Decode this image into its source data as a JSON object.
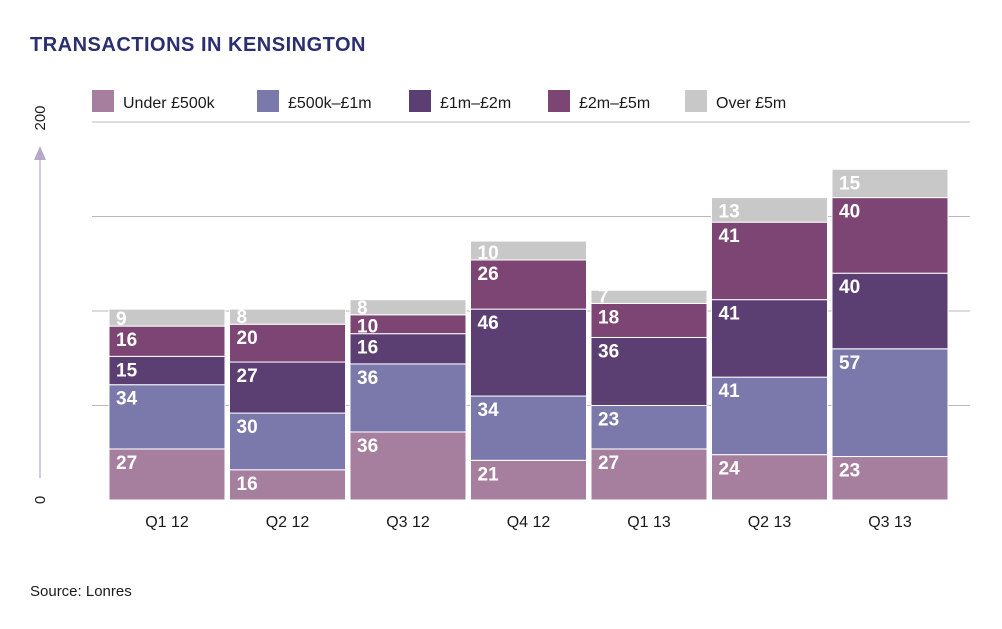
{
  "title": "TRANSACTIONS IN KENSINGTON",
  "source": "Source: Lonres",
  "chart_data": {
    "type": "bar",
    "stacked": true,
    "title": "TRANSACTIONS IN KENSINGTON",
    "xlabel": "",
    "ylabel": "",
    "ylim": [
      0,
      200
    ],
    "y_axis_labels": [
      "0",
      "200"
    ],
    "grid": true,
    "legend_position": "top",
    "categories": [
      "Q1 12",
      "Q2 12",
      "Q3 12",
      "Q4 12",
      "Q1 13",
      "Q2 13",
      "Q3 13"
    ],
    "series": [
      {
        "name": "Under £500k",
        "color": "#a67f9f",
        "values": [
          27,
          16,
          36,
          21,
          27,
          24,
          23
        ]
      },
      {
        "name": "£500k–£1m",
        "color": "#7b79ab",
        "values": [
          34,
          30,
          36,
          34,
          23,
          41,
          57
        ]
      },
      {
        "name": "£1m–£2m",
        "color": "#5b3f73",
        "values": [
          15,
          27,
          16,
          46,
          36,
          41,
          40
        ]
      },
      {
        "name": "£2m–£5m",
        "color": "#7d4573",
        "values": [
          16,
          20,
          10,
          26,
          18,
          41,
          40
        ]
      },
      {
        "name": "Over £5m",
        "color": "#c8c8c8",
        "values": [
          9,
          8,
          8,
          10,
          7,
          13,
          15
        ]
      }
    ]
  }
}
